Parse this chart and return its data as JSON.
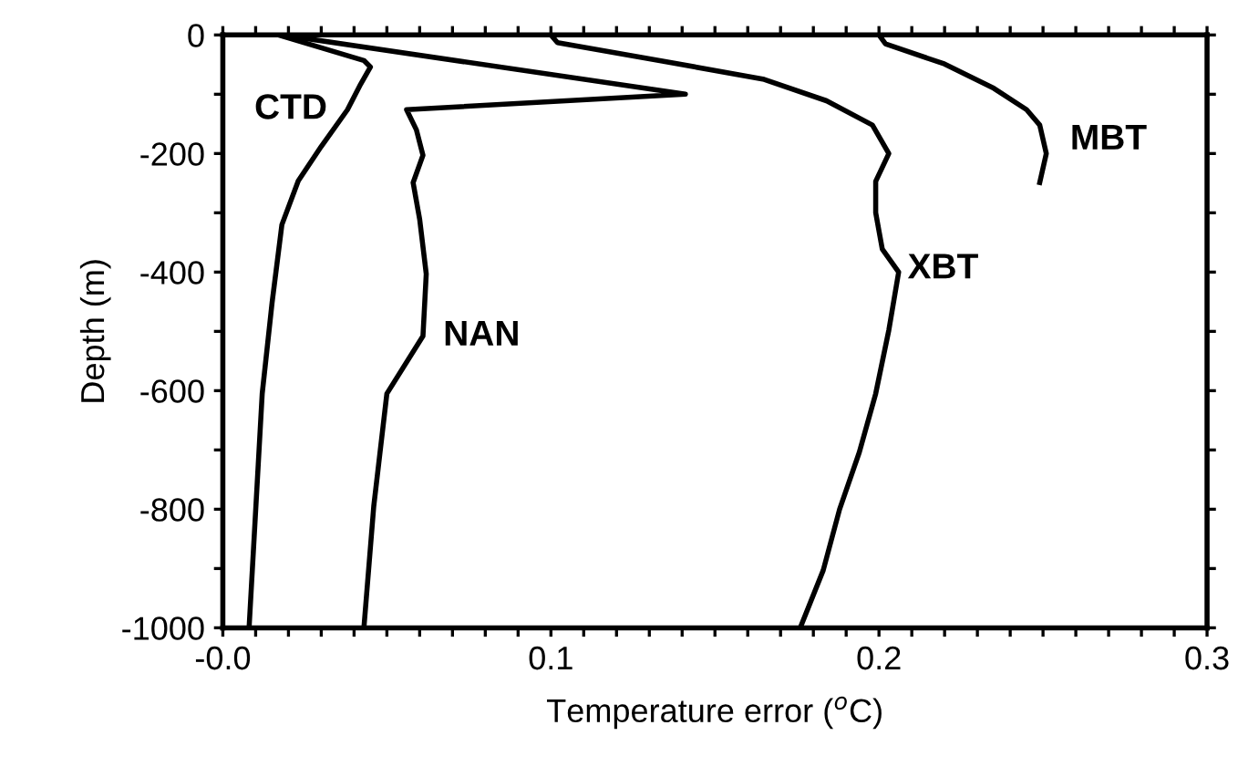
{
  "chart_data": {
    "type": "line",
    "xlabel": "Temperature error ($^{o}$C)",
    "ylabel": "Depth (m)",
    "xlim": [
      0,
      0.3
    ],
    "ylim": [
      -1000,
      0
    ],
    "xticks": [
      {
        "value": 0,
        "label": "-0.0"
      },
      {
        "value": 0.01,
        "label": null
      },
      {
        "value": 0.02,
        "label": null
      },
      {
        "value": 0.03,
        "label": null
      },
      {
        "value": 0.04,
        "label": null
      },
      {
        "value": 0.05,
        "label": null
      },
      {
        "value": 0.06,
        "label": null
      },
      {
        "value": 0.07,
        "label": null
      },
      {
        "value": 0.08,
        "label": null
      },
      {
        "value": 0.09,
        "label": null
      },
      0.1,
      {
        "value": 0.11,
        "label": null
      },
      {
        "value": 0.12,
        "label": null
      },
      {
        "value": 0.13,
        "label": null
      },
      {
        "value": 0.14,
        "label": null
      },
      {
        "value": 0.15,
        "label": null
      },
      {
        "value": 0.16,
        "label": null
      },
      {
        "value": 0.17,
        "label": null
      },
      {
        "value": 0.18,
        "label": null
      },
      {
        "value": 0.19,
        "label": null
      },
      0.2,
      {
        "value": 0.21,
        "label": null
      },
      {
        "value": 0.22,
        "label": null
      },
      {
        "value": 0.23,
        "label": null
      },
      {
        "value": 0.24,
        "label": null
      },
      {
        "value": 0.25,
        "label": null
      },
      {
        "value": 0.26,
        "label": null
      },
      {
        "value": 0.27,
        "label": null
      },
      {
        "value": 0.28,
        "label": null
      },
      {
        "value": 0.29,
        "label": null
      },
      0.3
    ],
    "yticks": [
      0,
      {
        "value": -100,
        "label": null
      },
      -200,
      {
        "value": -300,
        "label": null
      },
      -400,
      {
        "value": -500,
        "label": null
      },
      -600,
      {
        "value": -700,
        "label": null
      },
      -800,
      {
        "value": -900,
        "label": null
      },
      -1000
    ],
    "grid": false,
    "marker": "none",
    "line_style": "solid",
    "series": [
      {
        "name": "CTD",
        "color": "#000000",
        "x": [
          0.017,
          0.023,
          0.043,
          0.045,
          0.042,
          0.038,
          0.03,
          0.023,
          0.018,
          0.015,
          0.012,
          0.008
        ],
        "values": [
          0,
          -10,
          -43,
          -54,
          -83,
          -126,
          -188,
          -246,
          -320,
          -452,
          -605,
          -1000
        ]
      },
      {
        "name": "NAN",
        "color": "#000000",
        "x": [
          0.018,
          0.141,
          0.056,
          0.059,
          0.061,
          0.058,
          0.06,
          0.062,
          0.061,
          0.05,
          0.046,
          0.043
        ],
        "values": [
          0,
          -100,
          -126,
          -160,
          -203,
          -249,
          -311,
          -403,
          -508,
          -605,
          -795,
          -1000
        ]
      },
      {
        "name": "XBT",
        "color": "#000000",
        "x": [
          0.1,
          0.102,
          0.134,
          0.165,
          0.184,
          0.198,
          0.203,
          0.199,
          0.199,
          0.201,
          0.206,
          0.203,
          0.199,
          0.194,
          0.188,
          0.183,
          0.176
        ],
        "values": [
          0,
          -13,
          -44,
          -75,
          -111,
          -152,
          -200,
          -247,
          -300,
          -361,
          -400,
          -498,
          -605,
          -704,
          -800,
          -903,
          -1000
        ]
      },
      {
        "name": "MBT",
        "color": "#000000",
        "x": [
          0.2,
          0.202,
          0.22,
          0.235,
          0.245,
          0.249,
          0.251,
          0.249
        ],
        "values": [
          0,
          -15,
          -49,
          -90,
          -126,
          -152,
          -200,
          -249
        ]
      }
    ]
  }
}
